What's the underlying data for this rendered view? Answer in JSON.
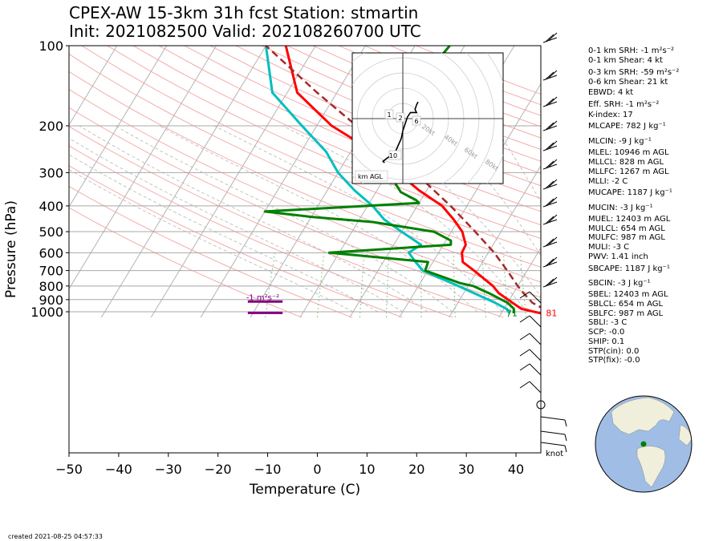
{
  "header": {
    "title_line1": "CPEX-AW 15-3km  31h fcst  Station: stmartin",
    "title_line2": "Init: 2021082500  Valid: 202108260700 UTC"
  },
  "chart_data": {
    "type": "line",
    "xlabel": "Temperature (C)",
    "ylabel": "Pressure (hPa)",
    "xlim": [
      -50,
      45
    ],
    "ylim": [
      1050,
      100
    ],
    "y_scale": "log",
    "x_ticks": [
      "−50",
      "−40",
      "−30",
      "−20",
      "−10",
      "0",
      "10",
      "20",
      "30",
      "40"
    ],
    "y_ticks": [
      "100",
      "200",
      "300",
      "400",
      "500",
      "600",
      "700",
      "800",
      "900",
      "1000"
    ],
    "series": [
      {
        "key": "temperature",
        "color": "#ff0000",
        "points": [
          [
            1013,
            28
          ],
          [
            975,
            23.5
          ],
          [
            925,
            21
          ],
          [
            850,
            17
          ],
          [
            800,
            15
          ],
          [
            700,
            9.3
          ],
          [
            650,
            6
          ],
          [
            600,
            4.7
          ],
          [
            560,
            4.5
          ],
          [
            500,
            2.2
          ],
          [
            450,
            -1
          ],
          [
            400,
            -5
          ],
          [
            350,
            -11.5
          ],
          [
            300,
            -18
          ],
          [
            250,
            -25.5
          ],
          [
            200,
            -37
          ],
          [
            150,
            -48
          ],
          [
            100,
            -56
          ]
        ]
      },
      {
        "key": "dewpoint",
        "color": "#00bfbf",
        "points": [
          [
            1013,
            21.7
          ],
          [
            975,
            20.5
          ],
          [
            925,
            17.5
          ],
          [
            850,
            12
          ],
          [
            800,
            8
          ],
          [
            700,
            -1
          ],
          [
            650,
            -3.5
          ],
          [
            600,
            -6
          ],
          [
            560,
            -4.5
          ],
          [
            500,
            -10
          ],
          [
            450,
            -15
          ],
          [
            400,
            -19
          ],
          [
            350,
            -24.5
          ],
          [
            300,
            -30
          ],
          [
            250,
            -35
          ],
          [
            200,
            -43
          ],
          [
            150,
            -53
          ],
          [
            100,
            -60
          ]
        ]
      },
      {
        "key": "wetbulb",
        "color": "#008000",
        "points": [
          [
            1013,
            22.5
          ],
          [
            975,
            22
          ],
          [
            925,
            20
          ],
          [
            850,
            15
          ],
          [
            800,
            11
          ],
          [
            780,
            8
          ],
          [
            700,
            -0.5
          ],
          [
            650,
            -1
          ],
          [
            600,
            -22
          ],
          [
            560,
            1.5
          ],
          [
            540,
            1
          ],
          [
            500,
            -3.5
          ],
          [
            460,
            -17
          ],
          [
            440,
            -30
          ],
          [
            430,
            -35
          ],
          [
            420,
            -40
          ],
          [
            390,
            -10
          ],
          [
            380,
            -11
          ],
          [
            355,
            -15
          ],
          [
            320,
            -18
          ],
          [
            300,
            -19
          ],
          [
            280,
            -17
          ],
          [
            255,
            -18
          ],
          [
            230,
            -18
          ],
          [
            200,
            -23
          ],
          [
            170,
            -30
          ],
          [
            150,
            -25
          ],
          [
            120,
            -24
          ],
          [
            100,
            -23
          ]
        ]
      },
      {
        "key": "parcel",
        "color": "#a52a2a",
        "dashed": true,
        "points": [
          [
            1013,
            31
          ],
          [
            975,
            28
          ],
          [
            925,
            25
          ],
          [
            850,
            22
          ],
          [
            800,
            20
          ],
          [
            700,
            16
          ],
          [
            600,
            11.2
          ],
          [
            500,
            4.8
          ],
          [
            450,
            1
          ],
          [
            400,
            -3.3
          ],
          [
            350,
            -8.5
          ],
          [
            300,
            -14.5
          ],
          [
            250,
            -22
          ],
          [
            200,
            -32
          ],
          [
            150,
            -44
          ],
          [
            100,
            -60
          ]
        ]
      }
    ],
    "surface_labels": [
      {
        "text": "71",
        "p": 1040,
        "t": 22.5,
        "color": "#008000"
      },
      {
        "text": "81",
        "p": 1040,
        "t": 30.5,
        "color": "#ff0000"
      }
    ],
    "srh_annotation": {
      "text": "-1 m²s⁻²",
      "p": 880,
      "t": -11,
      "color": "#800080"
    },
    "srh_bars": [
      {
        "p": 915,
        "t1": -14,
        "t2": -7
      },
      {
        "p": 1010,
        "t1": -14,
        "t2": -7
      }
    ],
    "barb_unit": "knot",
    "hodograph": {
      "label": "km AGL",
      "ring_labels": [
        "20kt",
        "40kt",
        "60kt",
        "80kt"
      ],
      "height_labels": [
        "1",
        "2",
        "6",
        "10"
      ],
      "trace": [
        [
          10,
          11
        ],
        [
          9,
          9
        ],
        [
          8,
          6
        ],
        [
          9,
          4
        ],
        [
          5,
          4
        ],
        [
          3,
          1
        ],
        [
          0,
          -8
        ],
        [
          -1,
          -13
        ],
        [
          -5,
          -22
        ],
        [
          -13,
          -28
        ],
        [
          -12,
          -29
        ]
      ]
    },
    "indices": [
      "0-1 km SRH: -1 m²s⁻²",
      "0-1 km Shear: 4 kt",
      "0-3 km SRH: -59 m²s⁻²",
      "0-6 km Shear: 21 kt",
      "EBWD: 4 kt",
      "Eff. SRH: -1 m²s⁻²",
      "K-index: 17",
      "MLCAPE: 782 J kg⁻¹",
      "MLCIN: -9 J kg⁻¹",
      "MLEL: 10946 m AGL",
      "MLLCL: 828 m AGL",
      "MLLFC: 1267 m AGL",
      "MLLI: -2 C",
      "MUCAPE: 1187 J kg⁻¹",
      "MUCIN: -3 J kg⁻¹",
      "MUEL: 12403 m AGL",
      "MULCL: 654 m AGL",
      "MULFC: 987 m AGL",
      "MULI: -3 C",
      "PWV: 1.41 inch",
      "SBCAPE: 1187 J kg⁻¹",
      "SBCIN: -3 J kg⁻¹",
      "SBEL: 12403 m AGL",
      "SBLCL: 654 m AGL",
      "SBLFC: 987 m AGL",
      "SBLI: -3 C",
      "SCP: -0.0",
      "SHIP: 0.1",
      "STP(cin): 0.0",
      "STP(fix): -0.0"
    ],
    "created": "created 2021-08-25 04:57:33",
    "globe_colors": {
      "ocean": "#a0bde6",
      "land": "#efefdc",
      "station": "#008000"
    }
  }
}
